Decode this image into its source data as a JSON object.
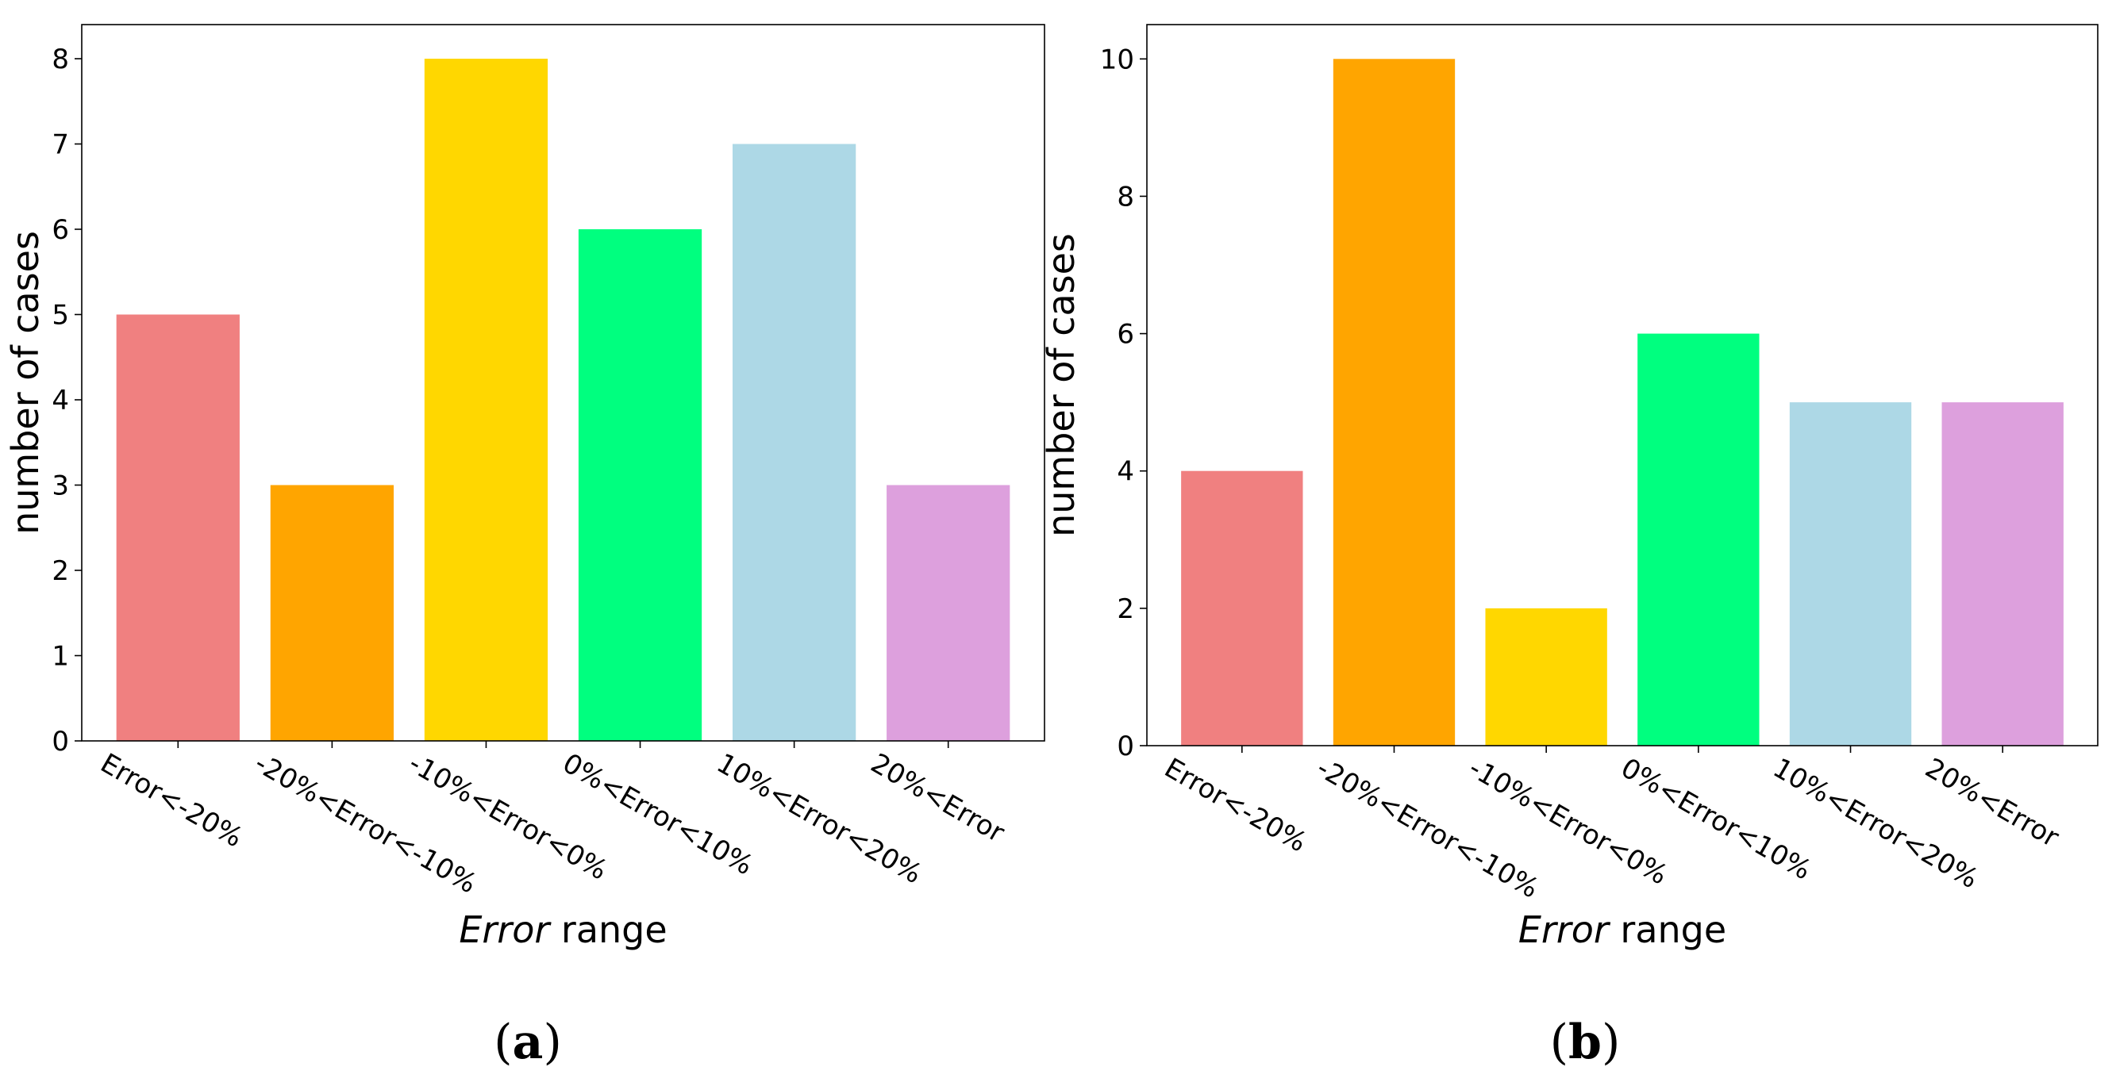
{
  "chart_data": [
    {
      "type": "bar",
      "panel_label": "(a)",
      "categories": [
        "Error<-20%",
        "-20%<Error<-10%",
        "-10%<Error<0%",
        "0%<Error<10%",
        "10%<Error<20%",
        "20%<Error"
      ],
      "values": [
        5,
        3,
        8,
        6,
        7,
        3
      ],
      "colors": [
        "#F08080",
        "#FFA500",
        "#FFD700",
        "#00FF7F",
        "#ADD8E6",
        "#DDA0DD"
      ],
      "xlabel_italic": "Error",
      "xlabel_rest": " range",
      "ylabel": "number of cases",
      "ylim": [
        0,
        8.4
      ],
      "yticks": [
        0,
        1,
        2,
        3,
        4,
        5,
        6,
        7,
        8
      ],
      "ytick_labels": [
        "0",
        "1",
        "2",
        "3",
        "4",
        "5",
        "6",
        "7",
        "8"
      ],
      "grid": false
    },
    {
      "type": "bar",
      "panel_label": "(b)",
      "categories": [
        "Error<-20%",
        "-20%<Error<-10%",
        "-10%<Error<0%",
        "0%<Error<10%",
        "10%<Error<20%",
        "20%<Error"
      ],
      "values": [
        4,
        10,
        2,
        6,
        5,
        5
      ],
      "colors": [
        "#F08080",
        "#FFA500",
        "#FFD700",
        "#00FF7F",
        "#ADD8E6",
        "#DDA0DD"
      ],
      "xlabel_italic": "Error",
      "xlabel_rest": " range",
      "ylabel": "number of cases",
      "ylim": [
        0,
        10.5
      ],
      "yticks": [
        0,
        2,
        4,
        6,
        8,
        10
      ],
      "ytick_labels": [
        "0",
        "2",
        "4",
        "6",
        "8",
        "10"
      ],
      "grid": false
    }
  ]
}
